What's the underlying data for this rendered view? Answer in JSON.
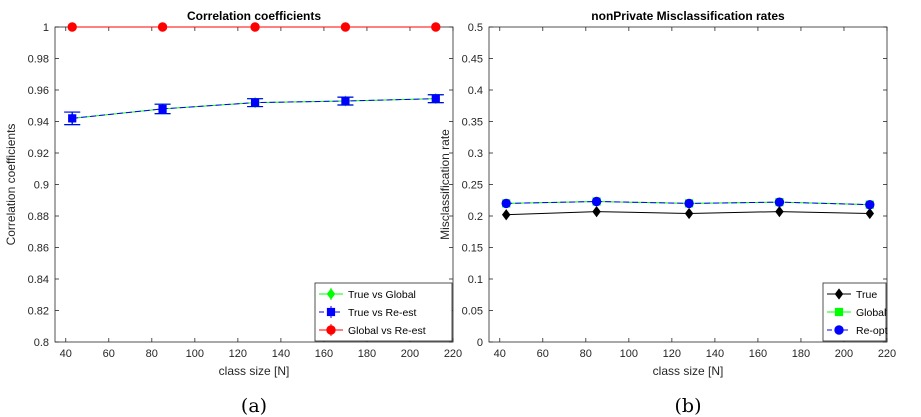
{
  "chart_data": [
    {
      "type": "line",
      "title": "Correlation coefficients",
      "xlabel": "class size [N]",
      "ylabel": "Correlation coefficients",
      "caption": "(a)",
      "xlim": [
        35,
        220
      ],
      "ylim": [
        0.8,
        1.0
      ],
      "xticks": [
        40,
        60,
        80,
        100,
        120,
        140,
        160,
        180,
        200,
        220
      ],
      "yticks": [
        0.8,
        0.82,
        0.84,
        0.86,
        0.88,
        0.9,
        0.92,
        0.94,
        0.96,
        0.98,
        1
      ],
      "x": [
        43,
        85,
        128,
        170,
        212
      ],
      "grid": false,
      "legend_position": "bottom-right",
      "series": [
        {
          "name": "True vs Global",
          "values": [
            0.942,
            0.948,
            0.952,
            0.953,
            0.9545
          ],
          "err": [
            0.004,
            0.003,
            0.0025,
            0.0025,
            0.0025
          ],
          "color": "#00ff00",
          "marker": "diamond",
          "line": "solid"
        },
        {
          "name": "True vs Re-est",
          "values": [
            0.942,
            0.948,
            0.952,
            0.953,
            0.9545
          ],
          "err": [
            0.004,
            0.003,
            0.0025,
            0.0025,
            0.0025
          ],
          "color": "#0000ff",
          "marker": "square",
          "line": "dashed"
        },
        {
          "name": "Global vs Re-est",
          "values": [
            1,
            1,
            1,
            1,
            1
          ],
          "err": [
            0,
            0,
            0,
            0,
            0
          ],
          "color": "#ff0000",
          "marker": "circle",
          "line": "solid"
        }
      ]
    },
    {
      "type": "line",
      "title": "nonPrivate Misclassification rates",
      "xlabel": "class size [N]",
      "ylabel": "Misclassification rate",
      "caption": "(b)",
      "xlim": [
        35,
        220
      ],
      "ylim": [
        0,
        0.5
      ],
      "xticks": [
        40,
        60,
        80,
        100,
        120,
        140,
        160,
        180,
        200,
        220
      ],
      "yticks": [
        0,
        0.05,
        0.1,
        0.15,
        0.2,
        0.25,
        0.3,
        0.35,
        0.4,
        0.45,
        0.5
      ],
      "x": [
        43,
        85,
        128,
        170,
        212
      ],
      "grid": false,
      "legend_position": "bottom-right",
      "series": [
        {
          "name": "True",
          "values": [
            0.202,
            0.207,
            0.204,
            0.207,
            0.204
          ],
          "color": "#000000",
          "marker": "diamond",
          "line": "solid"
        },
        {
          "name": "Global",
          "values": [
            0.22,
            0.223,
            0.22,
            0.222,
            0.218
          ],
          "color": "#00ff00",
          "marker": "square",
          "line": "solid"
        },
        {
          "name": "Re-opt",
          "values": [
            0.22,
            0.223,
            0.22,
            0.222,
            0.218
          ],
          "color": "#0000ff",
          "marker": "circle",
          "line": "dashed"
        }
      ]
    }
  ]
}
